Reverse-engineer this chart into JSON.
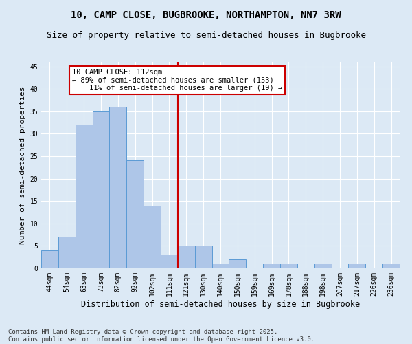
{
  "title1": "10, CAMP CLOSE, BUGBROOKE, NORTHAMPTON, NN7 3RW",
  "title2": "Size of property relative to semi-detached houses in Bugbrooke",
  "xlabel": "Distribution of semi-detached houses by size in Bugbrooke",
  "ylabel": "Number of semi-detached properties",
  "footnote1": "Contains HM Land Registry data © Crown copyright and database right 2025.",
  "footnote2": "Contains public sector information licensed under the Open Government Licence v3.0.",
  "bin_labels": [
    "44sqm",
    "54sqm",
    "63sqm",
    "73sqm",
    "82sqm",
    "92sqm",
    "102sqm",
    "111sqm",
    "121sqm",
    "130sqm",
    "140sqm",
    "150sqm",
    "159sqm",
    "169sqm",
    "178sqm",
    "188sqm",
    "198sqm",
    "207sqm",
    "217sqm",
    "226sqm",
    "236sqm"
  ],
  "bar_heights": [
    4,
    7,
    32,
    35,
    36,
    24,
    14,
    3,
    5,
    5,
    1,
    2,
    0,
    1,
    1,
    0,
    1,
    0,
    1,
    0,
    1
  ],
  "bar_color": "#aec6e8",
  "bar_edge_color": "#5b9bd5",
  "property_line_x": 7.5,
  "annotation_text": "10 CAMP CLOSE: 112sqm\n← 89% of semi-detached houses are smaller (153)\n    11% of semi-detached houses are larger (19) →",
  "annotation_box_color": "#ffffff",
  "annotation_box_edge": "#cc0000",
  "vline_color": "#cc0000",
  "ylim": [
    0,
    46
  ],
  "yticks": [
    0,
    5,
    10,
    15,
    20,
    25,
    30,
    35,
    40,
    45
  ],
  "bg_color": "#dce9f5",
  "plot_bg_color": "#dce9f5",
  "grid_color": "#ffffff",
  "title1_fontsize": 10,
  "title2_fontsize": 9,
  "xlabel_fontsize": 8.5,
  "ylabel_fontsize": 8,
  "tick_fontsize": 7,
  "annot_fontsize": 7.5,
  "footnote_fontsize": 6.5
}
